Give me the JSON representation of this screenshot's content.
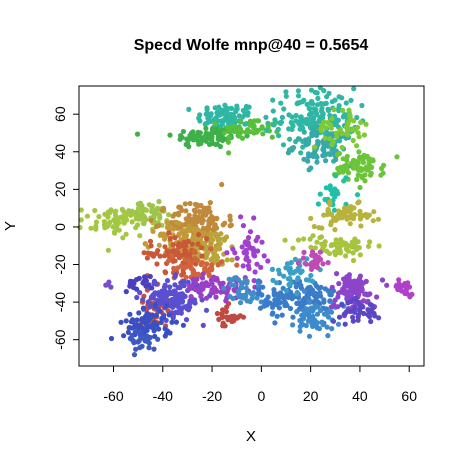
{
  "chart_data": {
    "type": "scatter",
    "title": "Specd Wolfe mnp@40 = 0.5654",
    "xlabel": "X",
    "ylabel": "Y",
    "xlim": [
      -74,
      66
    ],
    "ylim": [
      -74,
      75
    ],
    "x_ticks": [
      -60,
      -40,
      -20,
      0,
      20,
      40,
      60
    ],
    "y_ticks": [
      -60,
      -40,
      -20,
      0,
      20,
      40,
      60
    ],
    "x_tick_labels": [
      "-60",
      "-40",
      "-20",
      "0",
      "20",
      "40",
      "60"
    ],
    "y_tick_labels": [
      "-60",
      "-40",
      "-20",
      "0",
      "20",
      "40",
      "60"
    ],
    "grid": false,
    "legend": "none",
    "clusters": [
      {
        "color": "#2fb7a4",
        "cx": -14,
        "cy": 58,
        "sx": 6,
        "sy": 4,
        "n": 90
      },
      {
        "color": "#3db04a",
        "cx": -22,
        "cy": 48,
        "sx": 7,
        "sy": 3,
        "n": 80
      },
      {
        "color": "#58bf3c",
        "cx": -4,
        "cy": 52,
        "sx": 6,
        "sy": 3,
        "n": 50
      },
      {
        "color": "#2fb7a4",
        "cx": 22,
        "cy": 58,
        "sx": 8,
        "sy": 8,
        "n": 170
      },
      {
        "color": "#36a9a8",
        "cx": 25,
        "cy": 43,
        "sx": 6,
        "sy": 5,
        "n": 90
      },
      {
        "color": "#6cc43a",
        "cx": 40,
        "cy": 32,
        "sx": 5,
        "sy": 4,
        "n": 70
      },
      {
        "color": "#7fca34",
        "cx": 32,
        "cy": 52,
        "sx": 5,
        "sy": 5,
        "n": 45
      },
      {
        "color": "#1fbfa8",
        "cx": 30,
        "cy": 18,
        "sx": 3,
        "sy": 6,
        "n": 25
      },
      {
        "color": "#a4c742",
        "cx": -58,
        "cy": 3,
        "sx": 8,
        "sy": 4,
        "n": 80
      },
      {
        "color": "#9ec54a",
        "cx": -46,
        "cy": 7,
        "sx": 6,
        "sy": 3,
        "n": 40
      },
      {
        "color": "#b7b33c",
        "cx": 34,
        "cy": 6,
        "sx": 6,
        "sy": 3,
        "n": 60
      },
      {
        "color": "#a8c43e",
        "cx": 30,
        "cy": -10,
        "sx": 8,
        "sy": 3,
        "n": 60
      },
      {
        "color": "#c08a3c",
        "cx": -26,
        "cy": 2,
        "sx": 6,
        "sy": 6,
        "n": 140
      },
      {
        "color": "#c39a38",
        "cx": -30,
        "cy": -8,
        "sx": 7,
        "sy": 5,
        "n": 100
      },
      {
        "color": "#b9a53a",
        "cx": -20,
        "cy": -12,
        "sx": 5,
        "sy": 5,
        "n": 60
      },
      {
        "color": "#c95838",
        "cx": -34,
        "cy": -14,
        "sx": 6,
        "sy": 5,
        "n": 80
      },
      {
        "color": "#d1643c",
        "cx": -26,
        "cy": -22,
        "sx": 5,
        "sy": 4,
        "n": 50
      },
      {
        "color": "#c74f3a",
        "cx": -42,
        "cy": -42,
        "sx": 4,
        "sy": 4,
        "n": 35
      },
      {
        "color": "#bf4a40",
        "cx": -14,
        "cy": -48,
        "sx": 3,
        "sy": 3,
        "n": 25
      },
      {
        "color": "#5a4fd1",
        "cx": -36,
        "cy": -38,
        "sx": 6,
        "sy": 5,
        "n": 140
      },
      {
        "color": "#3b4fc4",
        "cx": -46,
        "cy": -52,
        "sx": 5,
        "sy": 4,
        "n": 80
      },
      {
        "color": "#3d5ac2",
        "cx": -48,
        "cy": -60,
        "sx": 3,
        "sy": 3,
        "n": 30
      },
      {
        "color": "#4c3fbf",
        "cx": -50,
        "cy": -30,
        "sx": 3,
        "sy": 2,
        "n": 20
      },
      {
        "color": "#9b3fc6",
        "cx": -18,
        "cy": -32,
        "sx": 6,
        "sy": 3,
        "n": 70
      },
      {
        "color": "#a03fd0",
        "cx": -5,
        "cy": -12,
        "sx": 3,
        "sy": 7,
        "n": 45
      },
      {
        "color": "#3f8ec9",
        "cx": -7,
        "cy": -34,
        "sx": 4,
        "sy": 4,
        "n": 40
      },
      {
        "color": "#3a7cc8",
        "cx": 15,
        "cy": -38,
        "sx": 8,
        "sy": 5,
        "n": 150
      },
      {
        "color": "#3d8bcd",
        "cx": 22,
        "cy": -48,
        "sx": 4,
        "sy": 5,
        "n": 60
      },
      {
        "color": "#3aa0c6",
        "cx": 14,
        "cy": -24,
        "sx": 5,
        "sy": 4,
        "n": 40
      },
      {
        "color": "#8b45c9",
        "cx": 37,
        "cy": -34,
        "sx": 5,
        "sy": 5,
        "n": 90
      },
      {
        "color": "#5b47c5",
        "cx": 40,
        "cy": -45,
        "sx": 4,
        "sy": 3,
        "n": 40
      },
      {
        "color": "#b040c8",
        "cx": 58,
        "cy": -32,
        "sx": 2,
        "sy": 2,
        "n": 25
      },
      {
        "color": "#c04bb5",
        "cx": 22,
        "cy": -18,
        "sx": 3,
        "sy": 3,
        "n": 25
      },
      {
        "color": "#7a4dcf",
        "cx": -62,
        "cy": -30,
        "sx": 1,
        "sy": 1,
        "n": 4
      }
    ]
  }
}
